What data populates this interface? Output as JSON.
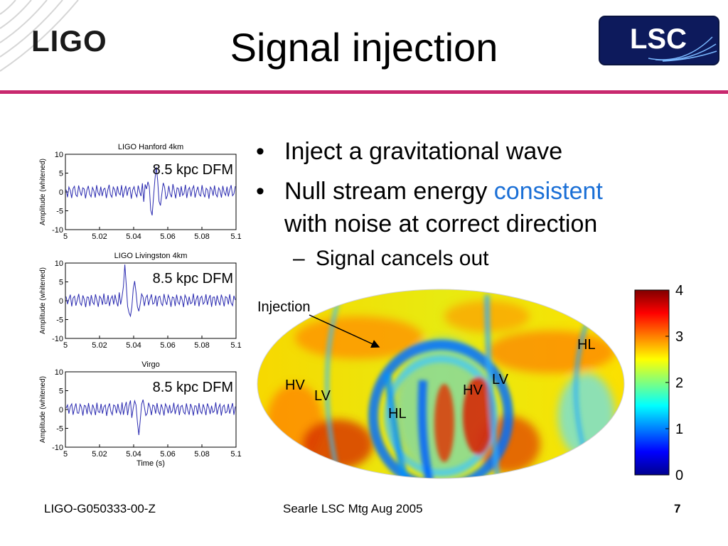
{
  "header": {
    "logo_ligo_text": "LIGO",
    "logo_lsc_text": "LSC",
    "title": "Signal injection",
    "divider_color": "#c8286e"
  },
  "bullets": {
    "item1": "Inject a gravitational wave",
    "item2_pre": "Null stream energy ",
    "item2_highlight": "consistent",
    "item2_post": "with noise at correct direction",
    "sub1": "Signal cancels out",
    "highlight_color": "#1a6fd6",
    "bullet_char": "•",
    "dash_char": "–"
  },
  "footer": {
    "left": "LIGO-G050333-00-Z",
    "center": "Searle LSC Mtg Aug 2005",
    "page": "7"
  },
  "chart_data": [
    {
      "type": "line",
      "title": "LIGO Hanford 4km",
      "ylabel": "Amplitude (whitened)",
      "xlabel": "",
      "annotation": "8.5 kpc DFM",
      "xlim": [
        5,
        5.1
      ],
      "ylim": [
        -10,
        10
      ],
      "xticks": [
        "5",
        "5.02",
        "5.04",
        "5.06",
        "5.08",
        "5.1"
      ],
      "yticks": [
        "10",
        "5",
        "0",
        "-5",
        "-10"
      ],
      "y": [
        0.6,
        -1.4,
        1.3,
        0.4,
        -1.6,
        0.9,
        1.5,
        -0.8,
        -1.2,
        1.7,
        0.2,
        -1.0,
        1.1,
        0.8,
        -1.7,
        0.5,
        1.6,
        -0.6,
        -1.3,
        1.2,
        0.3,
        -1.5,
        1.8,
        -0.2,
        -0.9,
        1.4,
        -1.1,
        0.7,
        1.0,
        -1.6,
        0.4,
        1.9,
        -0.7,
        -1.4,
        1.3,
        0.6,
        -1.2,
        1.5,
        -0.3,
        -0.8,
        1.8,
        -1.5,
        0.2,
        1.6,
        -1.0,
        0.9,
        1.2,
        -1.8,
        0.5,
        1.4,
        -0.4,
        -1.3,
        1.7,
        0.1,
        -1.1,
        2.3,
        -2.6,
        2.0,
        0.8,
        2.7,
        1.4,
        -4.8,
        -6.2,
        -1.5,
        3.3,
        6.6,
        3.0,
        -2.5,
        -3.6,
        -0.6,
        2.4,
        1.3,
        -1.9,
        -1.0,
        1.6,
        -0.5,
        -1.4,
        2.1,
        0.3,
        -1.7,
        1.1,
        0.9,
        -1.3,
        1.5,
        -0.9,
        -0.4,
        1.9,
        -1.6,
        0.6,
        1.2,
        -1.2,
        0.8,
        1.6,
        -1.5,
        0.2,
        1.4,
        -0.7,
        -1.1,
        1.8,
        -0.3,
        -1.4,
        1.0,
        0.5,
        -1.8,
        1.3,
        0.7,
        -1.0,
        1.7,
        -0.6,
        -1.3,
        1.1,
        0.4,
        -1.5,
        1.6,
        -0.2,
        -0.9,
        1.4,
        -1.2,
        0.6,
        1.8,
        -1.0,
        -0.5,
        1.5
      ]
    },
    {
      "type": "line",
      "title": "LIGO Livingston 4km",
      "ylabel": "Amplitude (whitened)",
      "xlabel": "",
      "annotation": "8.5 kpc DFM",
      "xlim": [
        5,
        5.1
      ],
      "ylim": [
        -10,
        10
      ],
      "xticks": [
        "5",
        "5.02",
        "5.04",
        "5.06",
        "5.08",
        "5.1"
      ],
      "yticks": [
        "10",
        "5",
        "0",
        "-5",
        "-10"
      ],
      "y": [
        1.1,
        -0.9,
        0.4,
        1.6,
        -1.5,
        0.7,
        1.2,
        -1.3,
        0.2,
        1.8,
        -0.6,
        -1.2,
        1.4,
        0.3,
        -1.7,
        1.0,
        0.9,
        -1.4,
        1.5,
        -0.4,
        -1.0,
        1.7,
        0.1,
        -1.6,
        1.2,
        0.6,
        -1.1,
        1.9,
        -0.8,
        -0.7,
        1.5,
        -1.4,
        0.5,
        1.3,
        -1.0,
        1.6,
        -0.2,
        -1.5,
        2.2,
        -1.0,
        1.1,
        3.8,
        9.6,
        4.2,
        -1.5,
        -3.2,
        -4.1,
        -1.8,
        3.1,
        5.2,
        2.3,
        -1.6,
        -2.8,
        -0.9,
        1.8,
        1.0,
        -1.4,
        0.8,
        1.5,
        -1.2,
        0.4,
        1.7,
        -0.9,
        -0.6,
        1.4,
        -1.5,
        0.9,
        1.2,
        -0.7,
        -1.3,
        1.8,
        -0.1,
        -1.1,
        1.5,
        0.5,
        -1.6,
        1.0,
        0.8,
        -1.4,
        1.6,
        -0.4,
        -1.0,
        1.3,
        0.2,
        -1.7,
        1.5,
        0.6,
        -1.2,
        1.1,
        -0.8,
        -0.5,
        1.9,
        -1.3,
        0.3,
        1.4,
        -1.5,
        0.7,
        1.2,
        -0.9,
        -0.4,
        1.7,
        -1.1,
        0.5,
        1.5,
        -1.6,
        0.9,
        1.0,
        -1.3,
        1.4,
        -0.2,
        -1.2,
        1.6,
        0.4,
        -1.5,
        1.1,
        0.8,
        -1.0,
        1.7,
        -0.6,
        -1.3,
        1.3,
        0.2
      ]
    },
    {
      "type": "line",
      "title": "Virgo",
      "ylabel": "Amplitude (whitened)",
      "xlabel": "Time (s)",
      "annotation": "8.5 kpc DFM",
      "xlim": [
        5,
        5.1
      ],
      "ylim": [
        -10,
        10
      ],
      "xticks": [
        "5",
        "5.02",
        "5.04",
        "5.06",
        "5.08",
        "5.1"
      ],
      "yticks": [
        "10",
        "5",
        "0",
        "-5",
        "-10"
      ],
      "y": [
        0.4,
        1.2,
        -1.1,
        0.8,
        1.5,
        -1.4,
        0.3,
        1.6,
        -0.9,
        -1.0,
        1.4,
        0.6,
        -1.6,
        1.1,
        0.9,
        -1.2,
        1.7,
        -0.4,
        -1.3,
        1.3,
        0.2,
        -1.5,
        1.8,
        -0.6,
        -0.8,
        1.5,
        -1.1,
        0.7,
        1.2,
        -1.7,
        0.5,
        1.6,
        -0.5,
        -1.4,
        1.2,
        0.9,
        -1.0,
        1.5,
        -0.3,
        -1.2,
        1.9,
        -1.4,
        0.6,
        2.0,
        -1.5,
        1.1,
        2.4,
        -2.2,
        0.4,
        2.3,
        1.2,
        -3.4,
        -6.8,
        -3.0,
        1.4,
        2.6,
        0.7,
        -1.6,
        -1.0,
        1.8,
        0.6,
        -1.5,
        1.2,
        0.9,
        -1.1,
        1.7,
        -0.5,
        -1.3,
        1.4,
        0.3,
        -1.6,
        1.5,
        0.7,
        -1.0,
        1.2,
        -0.9,
        -0.4,
        1.8,
        -1.2,
        0.5,
        1.3,
        -1.5,
        0.8,
        1.1,
        -0.7,
        -1.2,
        1.6,
        -0.2,
        -1.4,
        1.5,
        0.4,
        -1.6,
        1.0,
        0.9,
        -1.3,
        1.7,
        -0.5,
        -1.1,
        1.4,
        0.2,
        -1.5,
        1.6,
        0.6,
        -1.2,
        1.0,
        -0.8,
        -0.4,
        1.9,
        -1.3,
        0.5,
        1.4,
        -1.6,
        0.7,
        1.2,
        -0.9,
        -0.6,
        1.5,
        -1.1,
        0.3,
        1.7,
        -1.4,
        0.8
      ]
    },
    {
      "type": "heatmap",
      "title": "",
      "projection": "mollweide",
      "colormap": "jet",
      "clim": [
        0,
        4
      ],
      "colorbar_ticks": [
        "0",
        "1",
        "2",
        "3",
        "4"
      ],
      "annotations": [
        {
          "label": "Injection",
          "arrow": true
        },
        {
          "label": "HL"
        },
        {
          "label": "LV"
        },
        {
          "label": "HV"
        },
        {
          "label": "HV"
        },
        {
          "label": "LV"
        },
        {
          "label": "HL"
        }
      ]
    }
  ]
}
